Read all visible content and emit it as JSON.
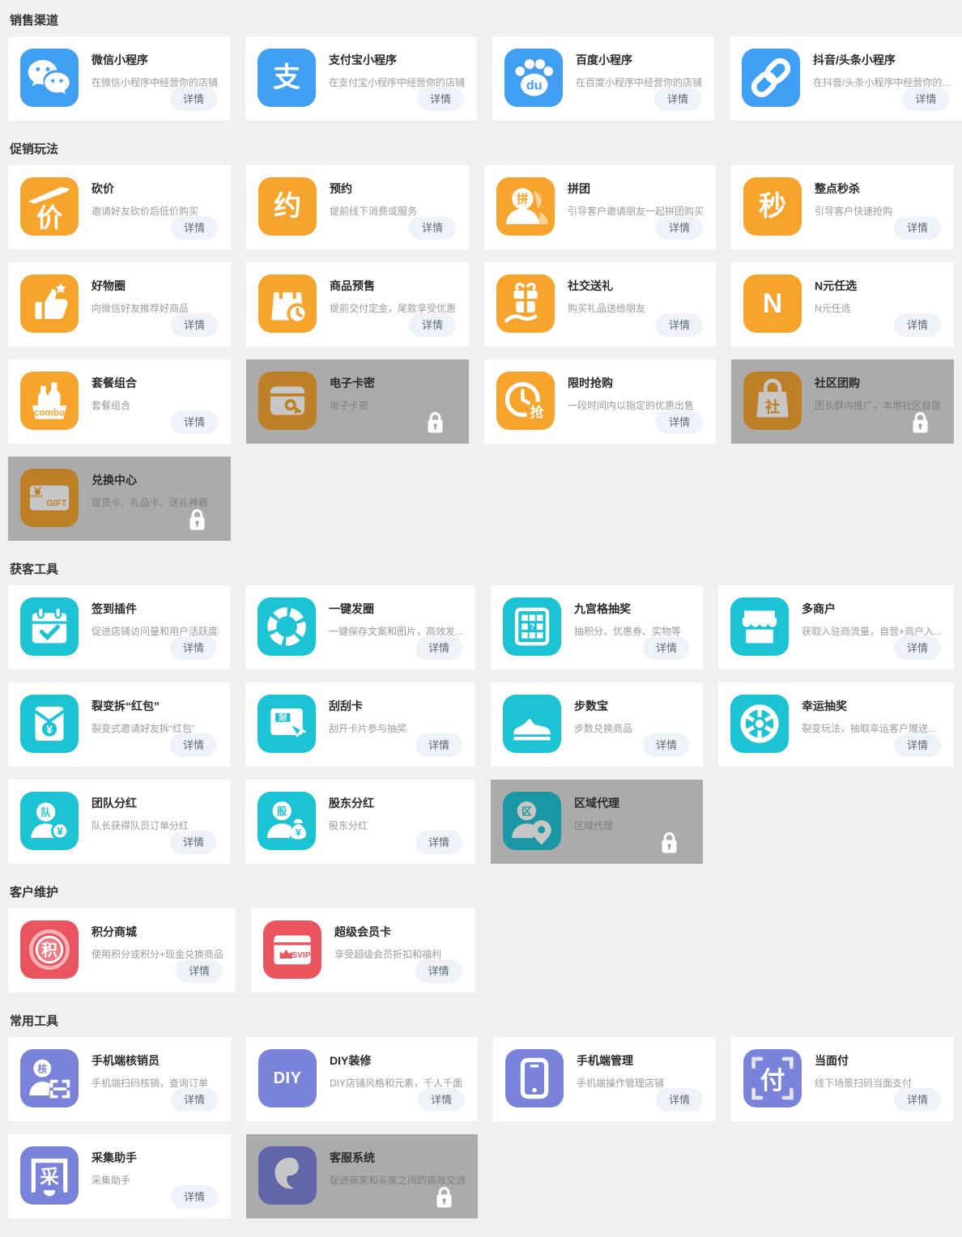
{
  "labels": {
    "details_button": "详情"
  },
  "colors": {
    "channel_blue": "#3f9ff2",
    "promo_orange": "#f7a42c",
    "acquire_cyan": "#1bc3d5",
    "maintain_red": "#e9545e",
    "tools_purple": "#7a83da",
    "locked_card_bg": "#ababab",
    "page_bg": "#f0f0f1"
  },
  "sections": [
    {
      "title": "销售渠道",
      "apps": [
        {
          "title": "微信小程序",
          "desc": "在微信小程序中经营你的店铺",
          "icon": "wechat-icon",
          "color": "#3f9ff2",
          "locked": false
        },
        {
          "title": "支付宝小程序",
          "desc": "在支付宝小程序中经营你的店铺",
          "icon": "alipay-icon",
          "glyph": "支",
          "color": "#3f9ff2",
          "locked": false
        },
        {
          "title": "百度小程序",
          "desc": "在百度小程序中经营你的店铺",
          "icon": "baidu-paw-icon",
          "glyph": "du",
          "color": "#3f9ff2",
          "locked": false
        },
        {
          "title": "抖音/头条小程序",
          "desc": "在抖音/头条小程序中经营你的...",
          "icon": "douyin-link-icon",
          "color": "#3f9ff2",
          "locked": false
        }
      ]
    },
    {
      "title": "促销玩法",
      "apps": [
        {
          "title": "砍价",
          "desc": "邀请好友砍价后低价购买",
          "icon": "bargain-knife-icon",
          "glyph": "价",
          "color": "#f7a42c",
          "locked": false
        },
        {
          "title": "预约",
          "desc": "提前线下消费或服务",
          "icon": "reserve-icon",
          "glyph": "约",
          "color": "#f7a42c",
          "locked": false
        },
        {
          "title": "拼团",
          "desc": "引导客户邀请朋友一起拼团购买",
          "icon": "groupbuy-person-icon",
          "glyph": "拼",
          "color": "#f7a42c",
          "locked": false
        },
        {
          "title": "整点秒杀",
          "desc": "引导客户快速抢购",
          "icon": "seckill-icon",
          "glyph": "秒",
          "color": "#f7a42c",
          "locked": false
        },
        {
          "title": "好物圈",
          "desc": "向微信好友推荐好商品",
          "icon": "thumb-star-icon",
          "color": "#f7a42c",
          "locked": false
        },
        {
          "title": "商品预售",
          "desc": "提前交付定金，尾款享受优惠",
          "icon": "presale-bag-clock-icon",
          "color": "#f7a42c",
          "locked": false
        },
        {
          "title": "社交送礼",
          "desc": "购买礼品送给朋友",
          "icon": "gift-hand-icon",
          "color": "#f7a42c",
          "locked": false
        },
        {
          "title": "N元任选",
          "desc": "N元任选",
          "icon": "n-letter-icon",
          "glyph": "N",
          "color": "#f7a42c",
          "locked": false
        },
        {
          "title": "套餐组合",
          "desc": "套餐组合",
          "icon": "combo-basket-icon",
          "glyph": "combo",
          "color": "#f7a42c",
          "locked": false
        },
        {
          "title": "电子卡密",
          "desc": "电子卡密",
          "icon": "card-key-icon",
          "color": "#f7a42c",
          "locked": true
        },
        {
          "title": "限时抢购",
          "desc": "一段时间内以指定的优惠出售",
          "icon": "flash-clock-icon",
          "glyph": "抢",
          "color": "#f7a42c",
          "locked": false
        },
        {
          "title": "社区团购",
          "desc": "团长群内推广，本地社区自提",
          "icon": "community-bag-icon",
          "glyph": "社",
          "color": "#f7a42c",
          "locked": true
        },
        {
          "title": "兑换中心",
          "desc": "提货卡、礼品卡、送礼神器",
          "icon": "giftcard-icon",
          "glyph": "GIFT",
          "color": "#f7a42c",
          "locked": true
        }
      ]
    },
    {
      "title": "获客工具",
      "apps": [
        {
          "title": "签到插件",
          "desc": "促进店铺访问量和用户活跃度",
          "icon": "calendar-check-icon",
          "color": "#1bc3d5",
          "locked": false
        },
        {
          "title": "一键发圈",
          "desc": "一键保存文案和图片，高效发...",
          "icon": "aperture-icon",
          "color": "#1bc3d5",
          "locked": false
        },
        {
          "title": "九宫格抽奖",
          "desc": "抽积分、优惠券、实物等",
          "icon": "grid-lottery-icon",
          "glyph": "?",
          "color": "#1bc3d5",
          "locked": false
        },
        {
          "title": "多商户",
          "desc": "获取入驻商流量，自营+商户入...",
          "icon": "storefront-icon",
          "color": "#1bc3d5",
          "locked": false
        },
        {
          "title": "裂变拆“红包”",
          "desc": "裂变式邀请好友拆“红包”",
          "icon": "red-packet-icon",
          "glyph": "¥",
          "color": "#1bc3d5",
          "locked": false
        },
        {
          "title": "刮刮卡",
          "desc": "刮开卡片参与抽奖",
          "icon": "scratch-card-icon",
          "glyph": "刮",
          "color": "#1bc3d5",
          "locked": false
        },
        {
          "title": "步数宝",
          "desc": "步数兑换商品",
          "icon": "sneaker-icon",
          "color": "#1bc3d5",
          "locked": false
        },
        {
          "title": "幸运抽奖",
          "desc": "裂变玩法，抽取幸运客户赠送...",
          "icon": "lucky-wheel-icon",
          "color": "#1bc3d5",
          "locked": false
        },
        {
          "title": "团队分红",
          "desc": "队长获得队员订单分红",
          "icon": "team-person-coin-icon",
          "glyph": "队",
          "glyph2": "¥",
          "color": "#1bc3d5",
          "locked": false
        },
        {
          "title": "股东分红",
          "desc": "股东分红",
          "icon": "shareholder-moneybag-icon",
          "glyph": "股",
          "glyph2": "¥",
          "color": "#1bc3d5",
          "locked": false
        },
        {
          "title": "区域代理",
          "desc": "区域代理",
          "icon": "agent-pin-icon",
          "glyph": "区",
          "color": "#1bc3d5",
          "locked": true
        }
      ]
    },
    {
      "title": "客户维护",
      "apps": [
        {
          "title": "积分商城",
          "desc": "使用积分或积分+现金兑换商品",
          "icon": "points-coin-icon",
          "glyph": "积",
          "color": "#e9545e",
          "locked": false
        },
        {
          "title": "超级会员卡",
          "desc": "享受超级会员折扣和福利",
          "icon": "svip-card-icon",
          "glyph": "SVIP",
          "color": "#e9545e",
          "locked": false
        }
      ]
    },
    {
      "title": "常用工具",
      "apps": [
        {
          "title": "手机端核销员",
          "desc": "手机端扫码核销，查询订单",
          "icon": "verifier-scan-icon",
          "glyph": "核",
          "color": "#7a83da",
          "locked": false
        },
        {
          "title": "DIY装修",
          "desc": "DIY店铺风格和元素，千人千面",
          "icon": "diy-letters-icon",
          "glyph": "DIY",
          "color": "#7a83da",
          "locked": false
        },
        {
          "title": "手机端管理",
          "desc": "手机端操作管理店铺",
          "icon": "phone-icon",
          "color": "#7a83da",
          "locked": false
        },
        {
          "title": "当面付",
          "desc": "线下场景扫码当面支付",
          "icon": "facepay-icon",
          "glyph": "付",
          "color": "#7a83da",
          "locked": false
        },
        {
          "title": "采集助手",
          "desc": "采集助手",
          "icon": "collect-frame-icon",
          "glyph": "采",
          "color": "#7a83da",
          "locked": false
        },
        {
          "title": "客服系统",
          "desc": "促进商家和买家之间的高效交流",
          "icon": "service-comma-icon",
          "color": "#7a83da",
          "locked": true
        }
      ]
    }
  ]
}
